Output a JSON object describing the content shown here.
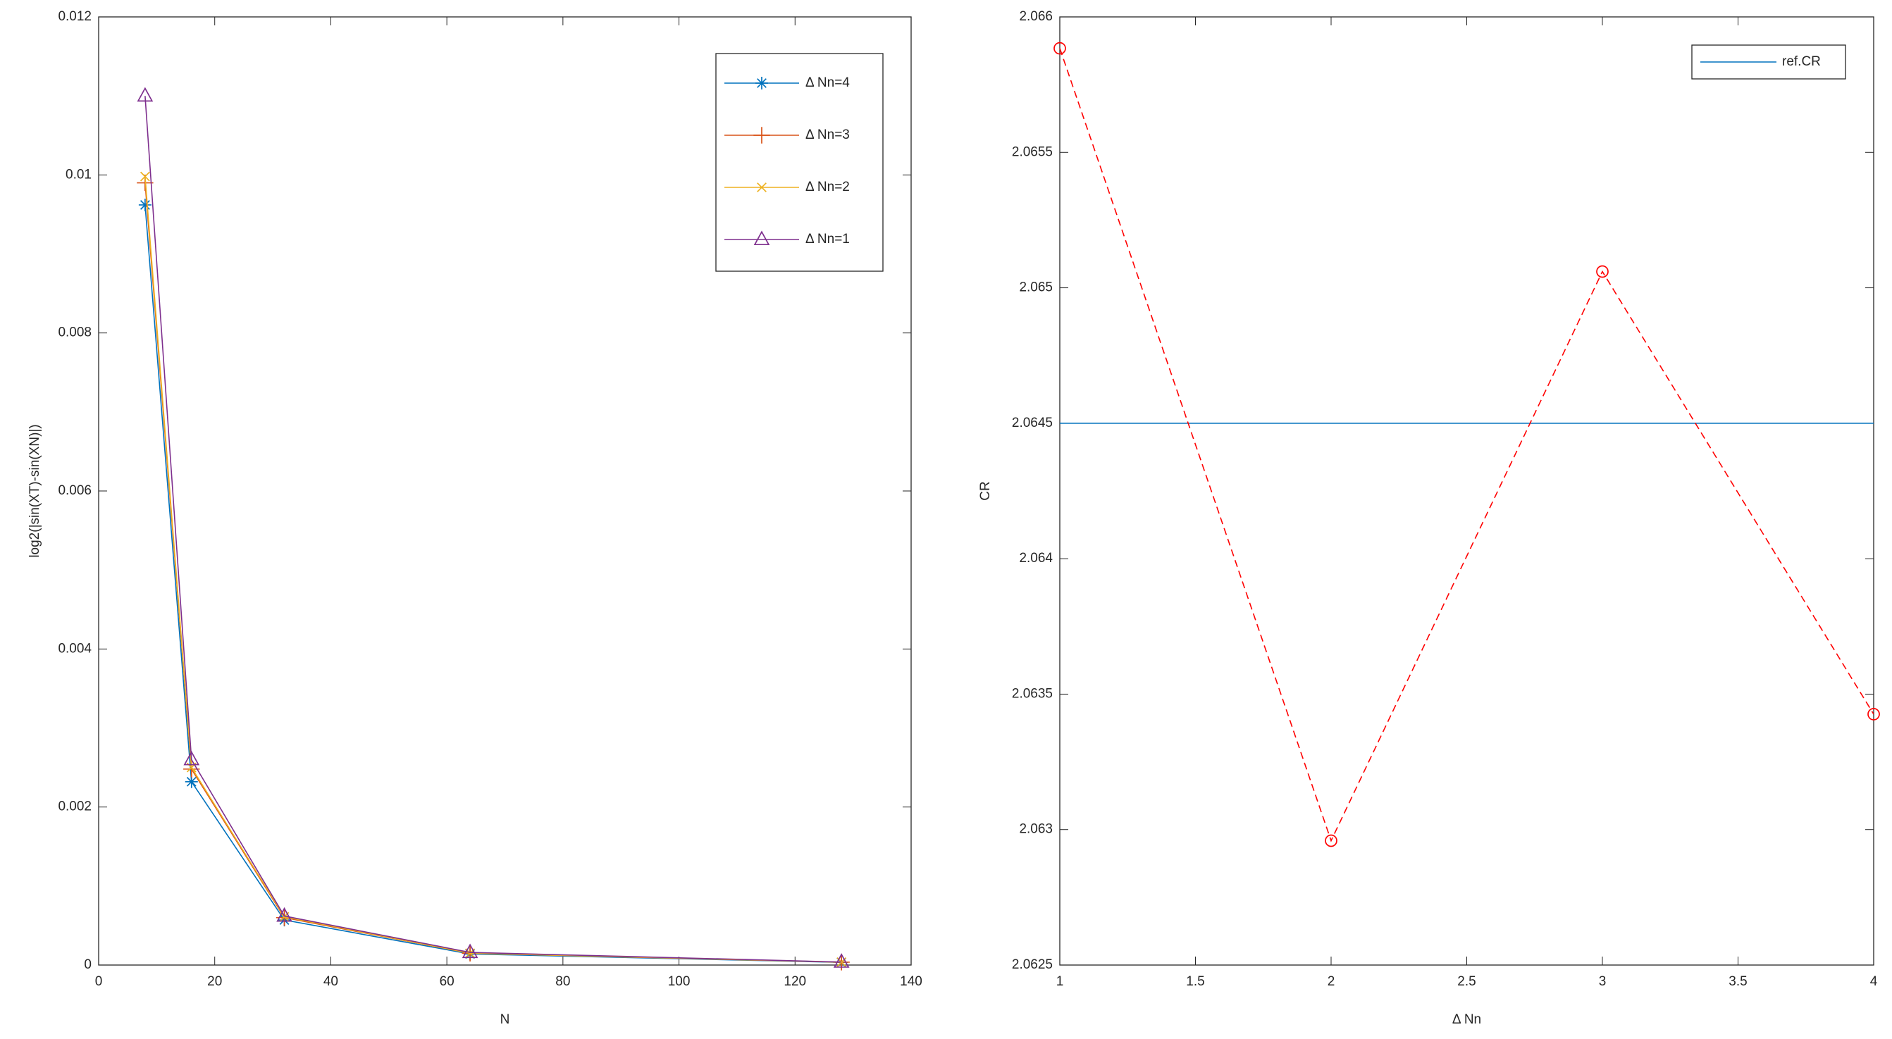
{
  "chart_data": [
    {
      "type": "line",
      "xlabel": "N",
      "ylabel": "log2(|sin(XT)-sin(XN)|)",
      "x": [
        8,
        16,
        32,
        64,
        128
      ],
      "series": [
        {
          "name": "Δ Nn=4",
          "color": "#0072bd",
          "marker": "*",
          "values": [
            0.00962,
            0.00232,
            0.00057,
            0.00014,
            3.4e-05
          ]
        },
        {
          "name": "Δ Nn=3",
          "color": "#d95319",
          "marker": "+",
          "values": [
            0.0099,
            0.00248,
            0.0006,
            0.00015,
            3.6e-05
          ]
        },
        {
          "name": "Δ Nn=2",
          "color": "#edb120",
          "marker": "x",
          "values": [
            0.00998,
            0.0025,
            0.00061,
            0.00015,
            3.7e-05
          ]
        },
        {
          "name": "Δ Nn=1",
          "color": "#7e2f8e",
          "marker": "^",
          "values": [
            0.011,
            0.0026,
            0.00062,
            0.00016,
            3.8e-05
          ]
        }
      ],
      "xlim": [
        0,
        140
      ],
      "xticks": [
        0,
        20,
        40,
        60,
        80,
        100,
        120,
        140
      ],
      "ylim": [
        0,
        0.012
      ],
      "yticks": [
        0,
        0.002,
        0.004,
        0.006,
        0.008,
        0.01,
        0.012
      ],
      "legend": "upper right"
    },
    {
      "type": "line",
      "xlabel": "Δ Nn",
      "ylabel": "CR",
      "x": [
        1,
        2,
        3,
        4
      ],
      "series": [
        {
          "name": "ref.CR",
          "color": "#0072bd",
          "values": [
            2.0645,
            2.0645,
            2.0645,
            2.0645
          ]
        },
        {
          "color": "#ff0000",
          "marker": "o",
          "linestyle": "--",
          "values": [
            2.065884,
            2.062959,
            2.06506,
            2.063426
          ]
        }
      ],
      "xlim": [
        1,
        4
      ],
      "xticks": [
        1,
        1.5,
        2,
        2.5,
        3,
        3.5,
        4
      ],
      "ylim": [
        2.0625,
        2.066
      ],
      "yticks": [
        2.0625,
        2.063,
        2.0635,
        2.064,
        2.0645,
        2.065,
        2.0655,
        2.066
      ],
      "legend": "upper right"
    }
  ]
}
